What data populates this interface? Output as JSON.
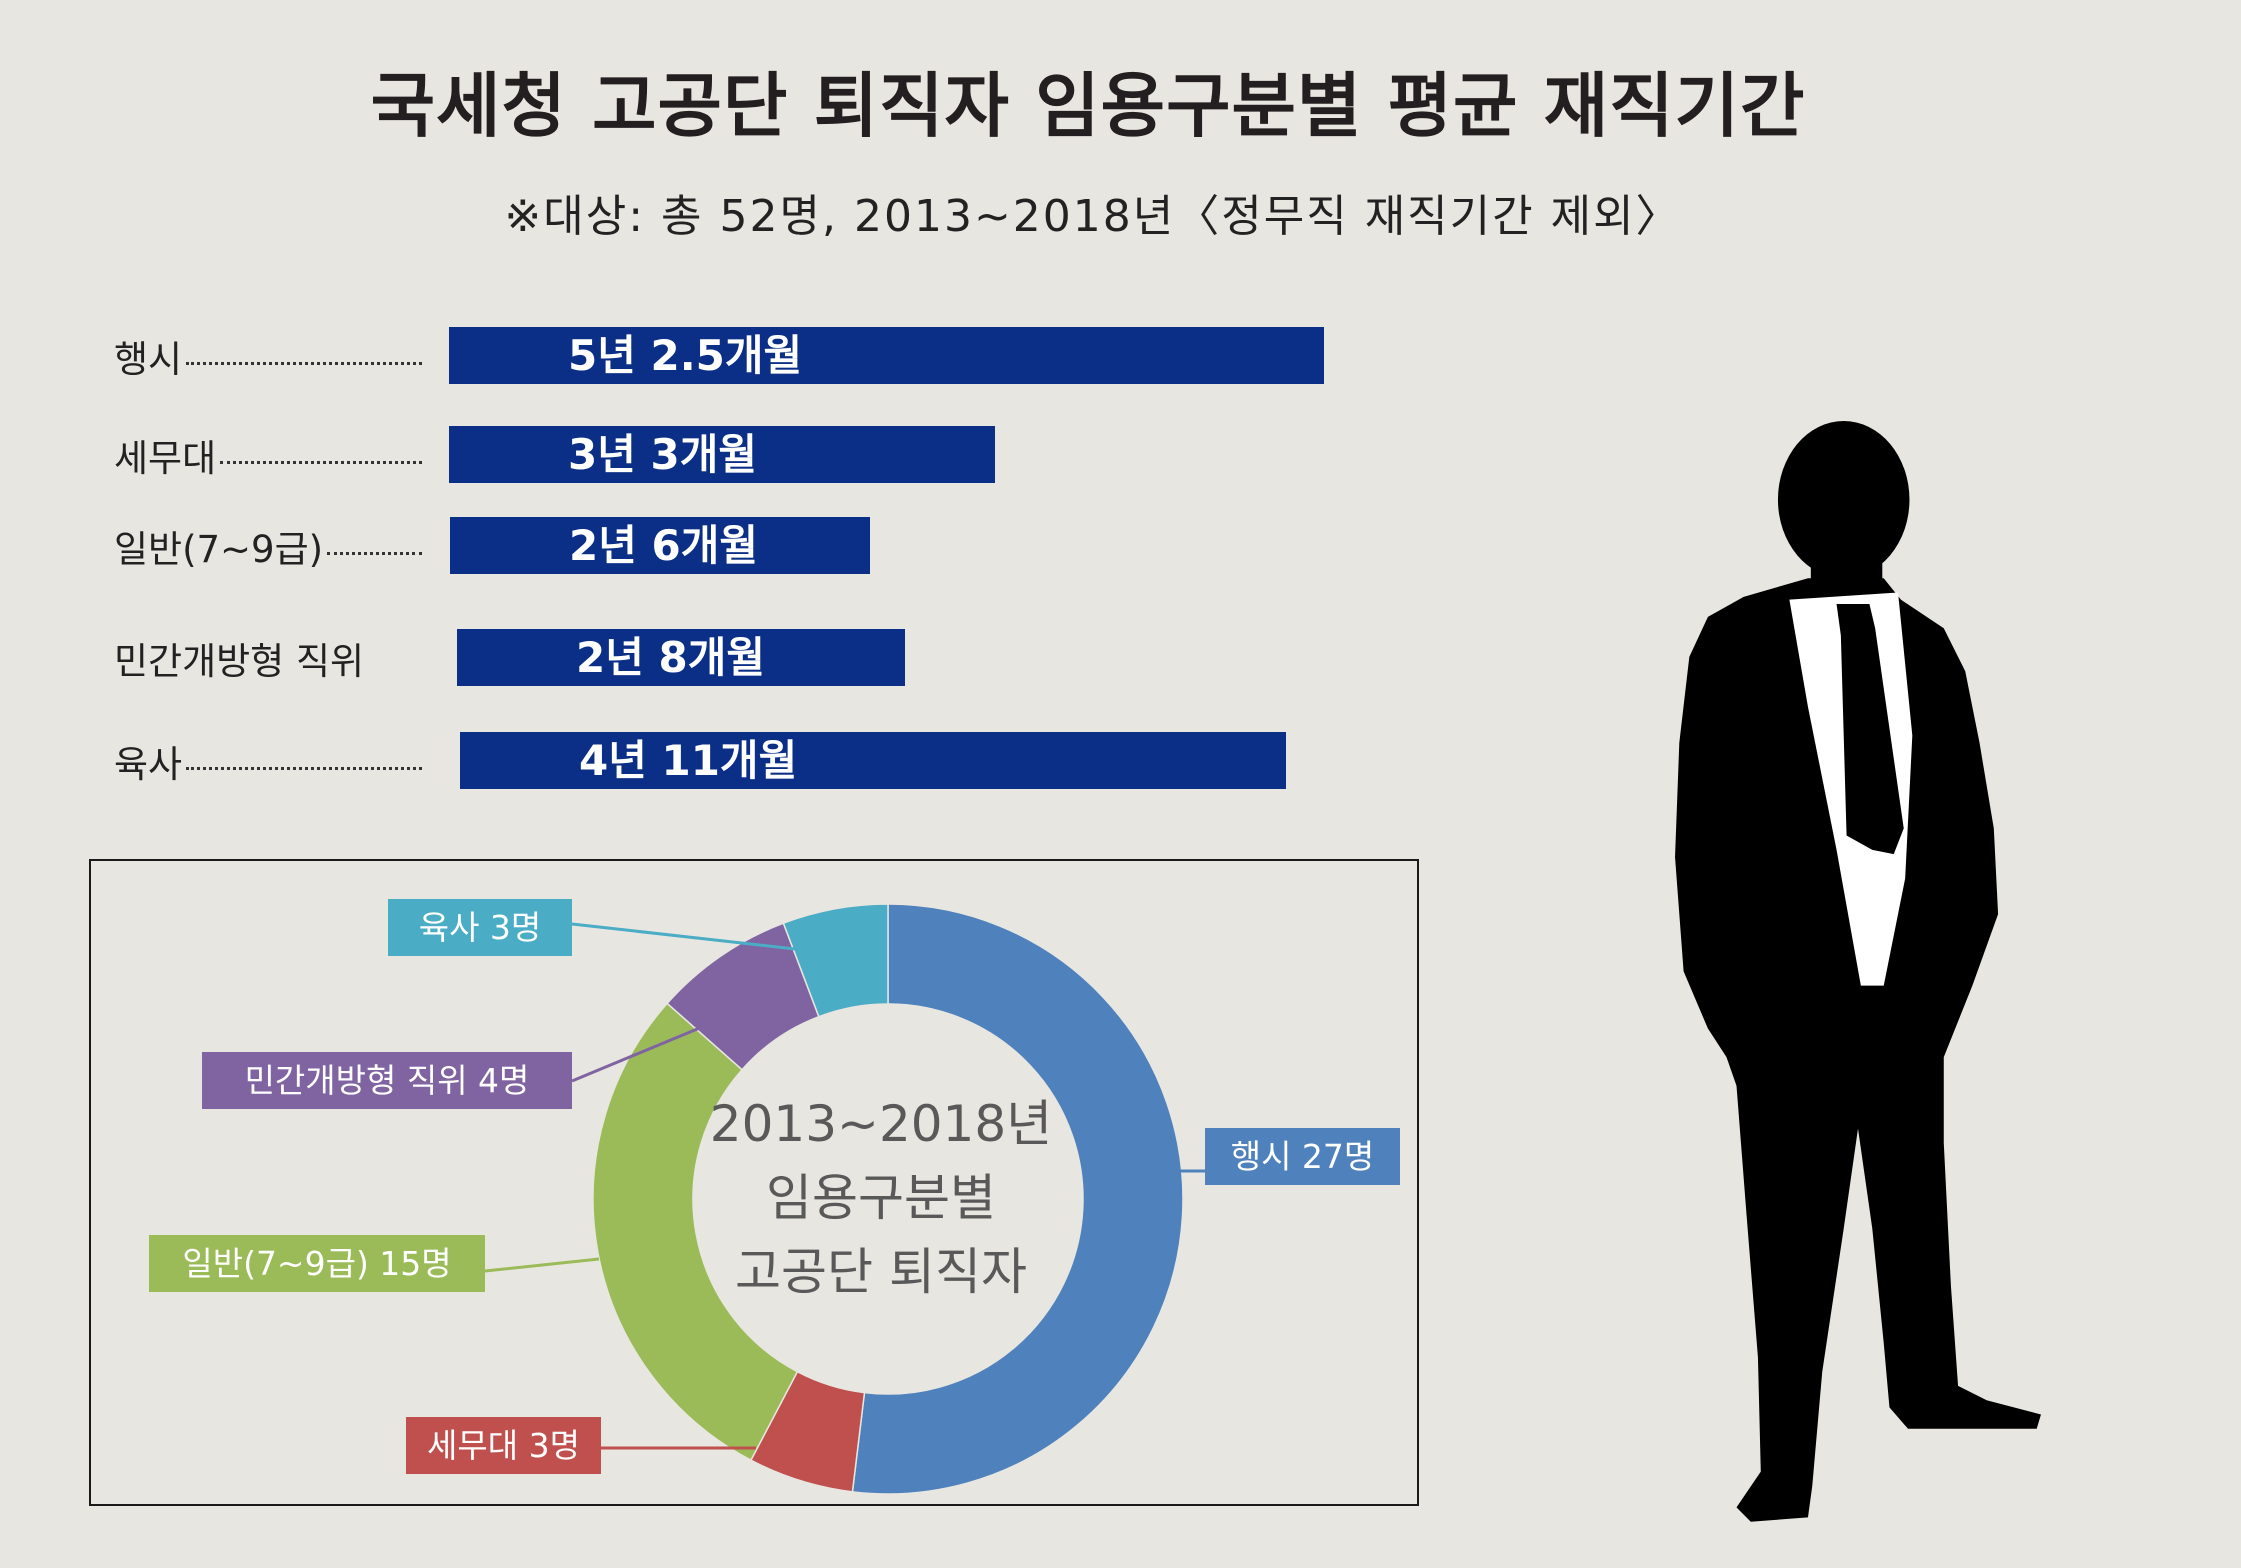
{
  "title": "국세청 고공단 퇴직자 임용구분별 평균 재직기간",
  "subtitle": "※대상: 총 52명, 2013~2018년〈정무직 재직기간 제외〉",
  "colors": {
    "background": "#E8E6E1",
    "bar": "#0B2E86",
    "title": "#231F20",
    "center_text": "#595959",
    "silhouette": "#000000",
    "shirt": "#FFFFFF"
  },
  "illustration": {
    "icon": "businessman-silhouette-icon"
  },
  "chart_data": [
    {
      "type": "bar",
      "orientation": "horizontal",
      "categories": [
        "행시",
        "세무대",
        "일반(7~9급)",
        "민간개방형 직위",
        "육사"
      ],
      "years": [
        5,
        3,
        2,
        2,
        4
      ],
      "months": [
        2.5,
        3,
        6,
        8,
        11
      ],
      "data_labels": [
        "5년 2.5개월",
        "3년 3개월",
        "2년 6개월",
        "2년 8개월",
        "4년 11개월"
      ],
      "color": "#0B2E86",
      "grid": false
    },
    {
      "type": "pie",
      "donut": true,
      "labels": [
        "행시 27명",
        "세무대 3명",
        "일반(7~9급) 15명",
        "민간개방형 직위 4명",
        "육사 3명"
      ],
      "values": [
        27,
        3,
        15,
        4,
        3
      ],
      "colors": [
        "#4F81BD",
        "#C0504D",
        "#9BBB59",
        "#8064A2",
        "#4BACC6"
      ],
      "center_text": [
        "2013~2018년",
        "임용구분별",
        "고공단 퇴직자"
      ]
    }
  ]
}
